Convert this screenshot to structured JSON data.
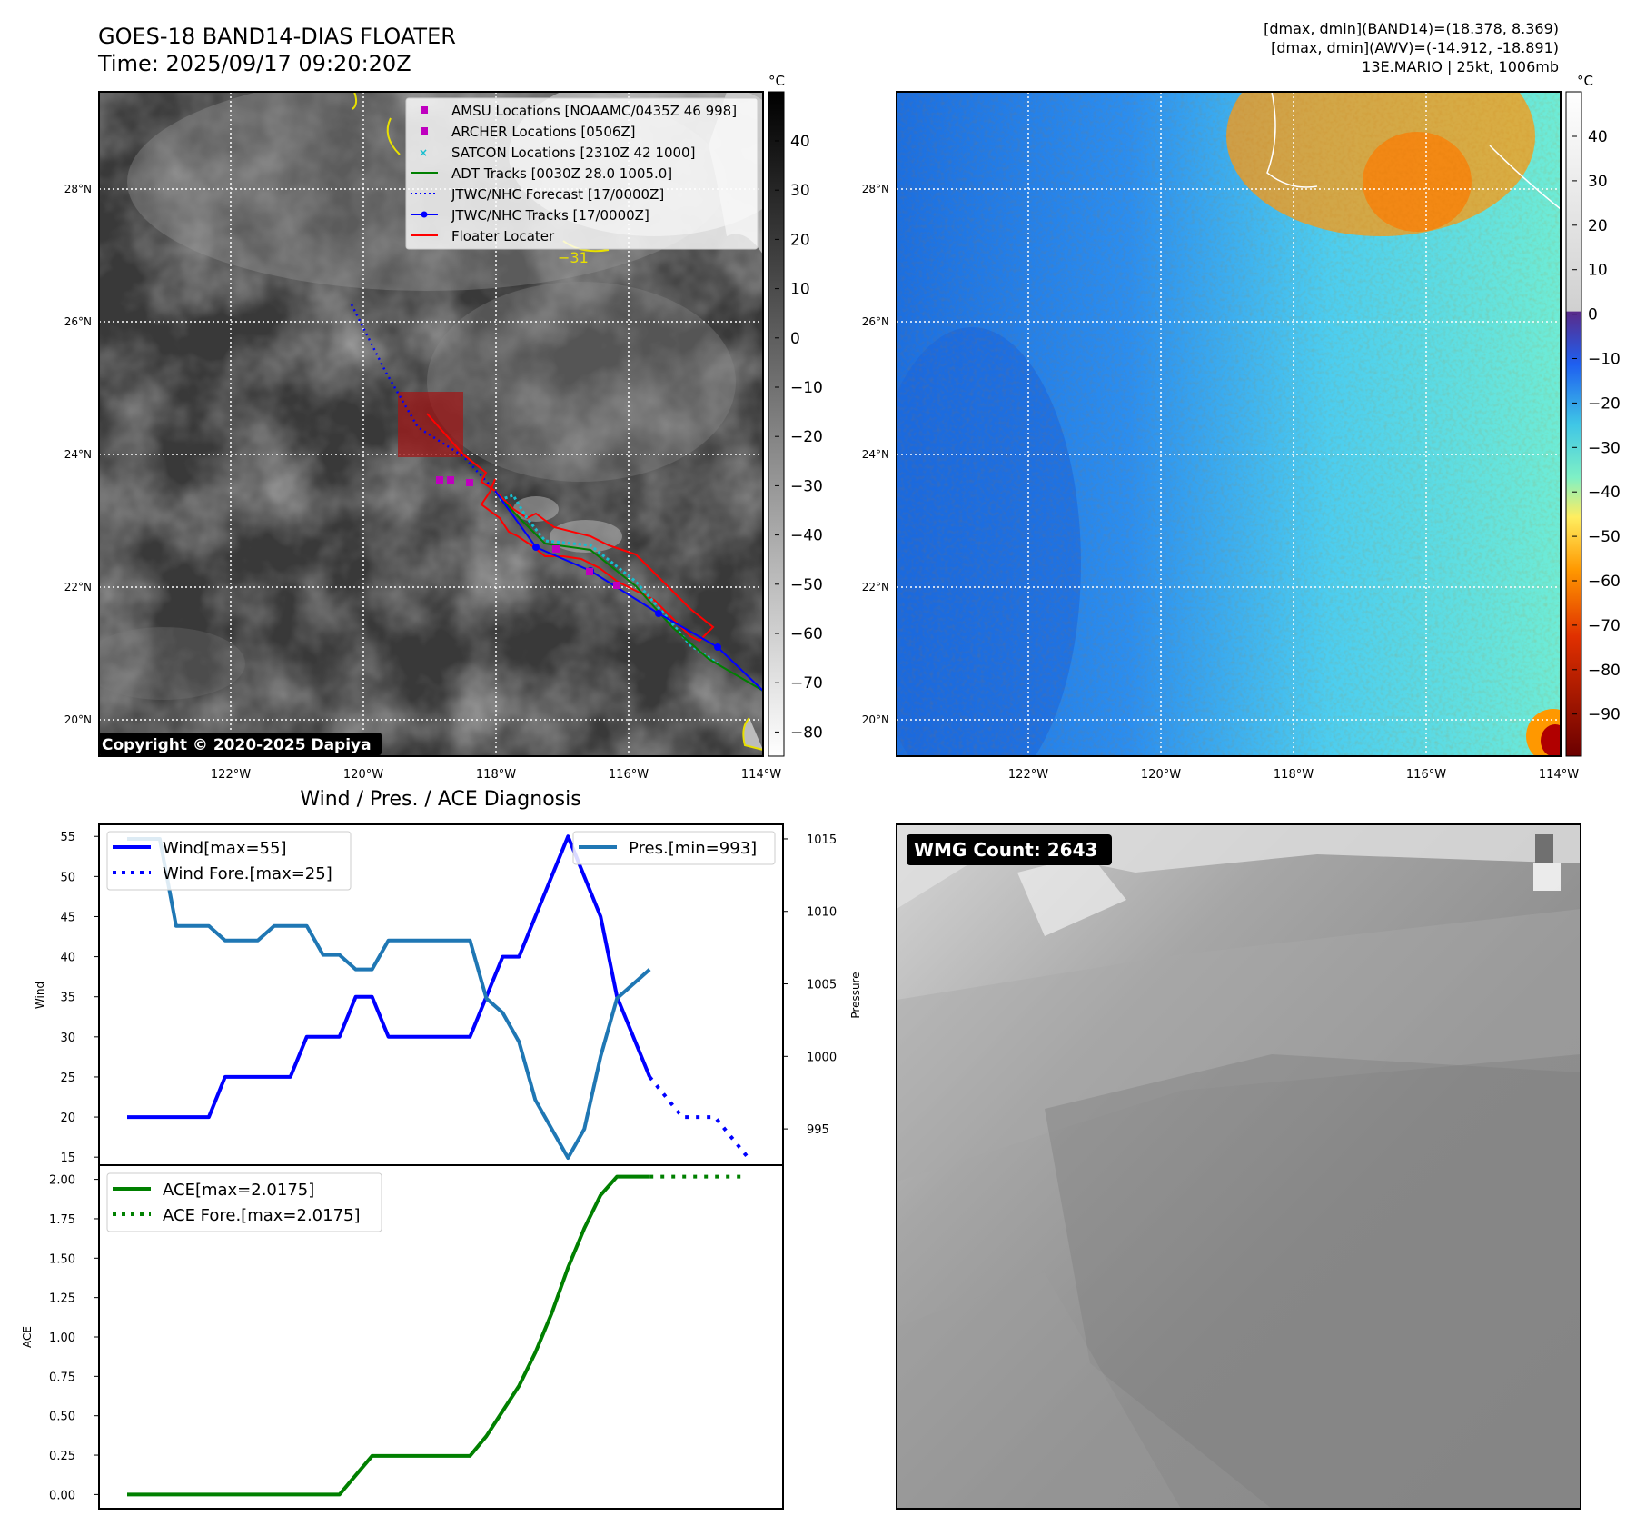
{
  "header": {
    "title_line1": "GOES-18 BAND14-DIAS FLOATER",
    "title_line2": "Time: 2025/09/17 09:20:20Z",
    "info_line1": "[dmax, dmin](BAND14)=(18.378, 8.369)",
    "info_line2": "[dmax, dmin](AWV)=(-14.912, -18.891)",
    "info_line3": "13E.MARIO | 25kt, 1006mb"
  },
  "map": {
    "lat_labels": [
      "28°N",
      "26°N",
      "24°N",
      "22°N",
      "20°N"
    ],
    "lon_labels": [
      "122°W",
      "120°W",
      "118°W",
      "116°W",
      "114°W"
    ],
    "contour_label": "−31",
    "copyright": "Copyright © 2020-2025 Dapiya",
    "legend": [
      {
        "label": "AMSU Locations [NOAAMC/0435Z 46 998]",
        "color": "#bf00bf",
        "marker": "square"
      },
      {
        "label": "ARCHER Locations [0506Z]",
        "color": "#bf00bf",
        "marker": "square"
      },
      {
        "label": "SATCON Locations [2310Z 42 1000]",
        "color": "#17becf",
        "marker": "x"
      },
      {
        "label": "ADT Tracks [0030Z 28.0 1005.0]",
        "color": "#008000",
        "marker": "line"
      },
      {
        "label": "JTWC/NHC Forecast [17/0000Z]",
        "color": "#0000ff",
        "marker": "dotted"
      },
      {
        "label": "JTWC/NHC Tracks [17/0000Z]",
        "color": "#0000ff",
        "marker": "line-dot"
      },
      {
        "label": "Floater Locater",
        "color": "#ff0000",
        "marker": "line"
      }
    ]
  },
  "colorbar_left": {
    "unit": "°C",
    "ticks": [
      "40",
      "30",
      "20",
      "10",
      "0",
      "−10",
      "−20",
      "−30",
      "−40",
      "−50",
      "−60",
      "−70",
      "−80"
    ]
  },
  "colorbar_right": {
    "unit": "°C",
    "ticks": [
      "40",
      "30",
      "20",
      "10",
      "0",
      "−10",
      "−20",
      "−30",
      "−40",
      "−50",
      "−60",
      "−70",
      "−80",
      "−90"
    ]
  },
  "wmg": {
    "label": "WMG Count: 2643"
  },
  "chart_data": [
    {
      "type": "line",
      "title": "Wind / Pres. / ACE Diagnosis",
      "ylabel": "Wind",
      "y2label": "Pressure",
      "ylim": [
        14,
        56.5
      ],
      "y2lim": [
        992.5,
        1016
      ],
      "yticks": [
        "15",
        "20",
        "25",
        "30",
        "35",
        "40",
        "45",
        "50",
        "55"
      ],
      "y2ticks": [
        "995",
        "1000",
        "1005",
        "1010",
        "1015"
      ],
      "legend_left": [
        "Wind[max=55]",
        "Wind Fore.[max=25]"
      ],
      "legend_right": [
        "Pres.[min=993]"
      ],
      "series": [
        {
          "name": "Wind[max=55]",
          "color": "#0000ff",
          "style": "solid",
          "axis": "left",
          "values": [
            [
              0,
              20
            ],
            [
              5,
              20
            ],
            [
              6,
              25
            ],
            [
              10,
              25
            ],
            [
              11,
              30
            ],
            [
              13,
              30
            ],
            [
              14,
              35
            ],
            [
              15,
              35
            ],
            [
              16,
              30
            ],
            [
              21,
              30
            ],
            [
              23,
              40
            ],
            [
              24,
              40
            ],
            [
              25,
              45
            ],
            [
              27,
              55
            ],
            [
              29,
              45
            ],
            [
              30,
              35
            ],
            [
              32,
              25
            ]
          ]
        },
        {
          "name": "Wind Fore.[max=25]",
          "color": "#0000ff",
          "style": "dotted",
          "axis": "left",
          "values": [
            [
              32,
              25
            ],
            [
              34,
              20
            ],
            [
              36,
              20
            ],
            [
              38,
              15
            ]
          ]
        },
        {
          "name": "Pres.[min=993]",
          "color": "#1f77b4",
          "style": "solid",
          "axis": "right",
          "values": [
            [
              0,
              1015
            ],
            [
              2,
              1015
            ],
            [
              3,
              1009
            ],
            [
              5,
              1009
            ],
            [
              6,
              1008
            ],
            [
              8,
              1008
            ],
            [
              9,
              1009
            ],
            [
              11,
              1009
            ],
            [
              12,
              1007
            ],
            [
              13,
              1007
            ],
            [
              14,
              1006
            ],
            [
              15,
              1006
            ],
            [
              16,
              1008
            ],
            [
              21,
              1008
            ],
            [
              22,
              1004
            ],
            [
              23,
              1003
            ],
            [
              24,
              1001
            ],
            [
              25,
              997
            ],
            [
              27,
              993
            ],
            [
              28,
              995
            ],
            [
              29,
              1000
            ],
            [
              30,
              1004
            ],
            [
              32,
              1006
            ]
          ]
        }
      ]
    },
    {
      "type": "line",
      "ylabel": "ACE",
      "ylim": [
        -0.09,
        2.09
      ],
      "yticks": [
        "0.00",
        "0.25",
        "0.50",
        "0.75",
        "1.00",
        "1.25",
        "1.50",
        "1.75",
        "2.00"
      ],
      "legend": [
        "ACE[max=2.0175]",
        "ACE Fore.[max=2.0175]"
      ],
      "series": [
        {
          "name": "ACE[max=2.0175]",
          "color": "#008000",
          "style": "solid",
          "values": [
            [
              0,
              0
            ],
            [
              13,
              0
            ],
            [
              15,
              0.245
            ],
            [
              21,
              0.245
            ],
            [
              22,
              0.37
            ],
            [
              23,
              0.53
            ],
            [
              24,
              0.69
            ],
            [
              25,
              0.9
            ],
            [
              26,
              1.15
            ],
            [
              27,
              1.44
            ],
            [
              28,
              1.69
            ],
            [
              29,
              1.9
            ],
            [
              30,
              2.0175
            ],
            [
              32,
              2.0175
            ]
          ]
        },
        {
          "name": "ACE Fore.[max=2.0175]",
          "color": "#008000",
          "style": "dotted",
          "values": [
            [
              32,
              2.0175
            ],
            [
              38,
              2.0175
            ]
          ]
        }
      ]
    }
  ]
}
